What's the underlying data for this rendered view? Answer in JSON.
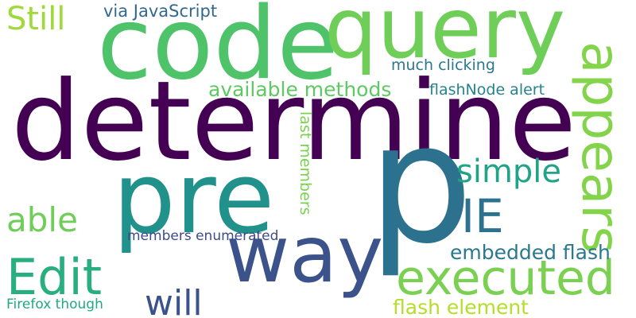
{
  "words": [
    {
      "text": "determine",
      "color": "#440154"
    },
    {
      "text": "code",
      "color": "#4ec36a"
    },
    {
      "text": "query",
      "color": "#6ece58"
    },
    {
      "text": "p",
      "color": "#2c728e"
    },
    {
      "text": "pre",
      "color": "#21918c"
    },
    {
      "text": "way",
      "color": "#3b528b"
    },
    {
      "text": "executed",
      "color": "#7ad151"
    },
    {
      "text": "appears",
      "color": "#84d44b"
    },
    {
      "text": "Edit",
      "color": "#29af7f"
    },
    {
      "text": "Still",
      "color": "#a0da39"
    },
    {
      "text": "via JavaScript",
      "color": "#31688e"
    },
    {
      "text": "much clicking",
      "color": "#2a788e"
    },
    {
      "text": "available methods",
      "color": "#5ec962"
    },
    {
      "text": "flashNode alert",
      "color": "#26828e"
    },
    {
      "text": "simple",
      "color": "#20a386"
    },
    {
      "text": "IE",
      "color": "#2c728e"
    },
    {
      "text": "able",
      "color": "#6ece58"
    },
    {
      "text": "last members",
      "color": "#7ad151"
    },
    {
      "text": "members enumerated",
      "color": "#3e4a89"
    },
    {
      "text": "embedded flash",
      "color": "#2a788e"
    },
    {
      "text": "will",
      "color": "#3b528b"
    },
    {
      "text": "Firefox though",
      "color": "#22a884"
    },
    {
      "text": "flash element",
      "color": "#b5de2b"
    }
  ]
}
